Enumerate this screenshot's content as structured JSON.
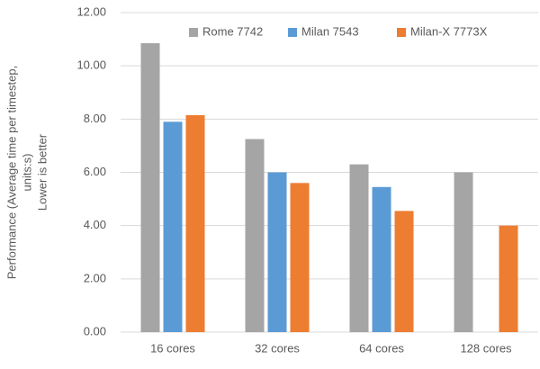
{
  "chart_data": {
    "type": "bar",
    "ylabel": [
      "Performance (Average time per timestep,",
      "units:s)",
      "Lower is better"
    ],
    "categories": [
      "16 cores",
      "32 cores",
      "64 cores",
      "128 cores"
    ],
    "series": [
      {
        "name": "Rome 7742",
        "color": "#a5a5a5",
        "values": [
          10.85,
          7.25,
          6.3,
          6.0
        ]
      },
      {
        "name": "Milan 7543",
        "color": "#5b9bd5",
        "values": [
          7.9,
          6.0,
          5.45,
          null
        ]
      },
      {
        "name": "Milan-X 7773X",
        "color": "#ed7d31",
        "values": [
          8.15,
          5.6,
          4.55,
          4.0
        ]
      }
    ],
    "ylim": [
      0,
      12
    ],
    "yticks": [
      {
        "value": 0,
        "label": "0.00"
      },
      {
        "value": 2,
        "label": "2.00"
      },
      {
        "value": 4,
        "label": "4.00"
      },
      {
        "value": 6,
        "label": "6.00"
      },
      {
        "value": 8,
        "label": "8.00"
      },
      {
        "value": 10,
        "label": "10.00"
      },
      {
        "value": 12,
        "label": "12.00"
      }
    ],
    "grid": true,
    "legend": "top"
  }
}
